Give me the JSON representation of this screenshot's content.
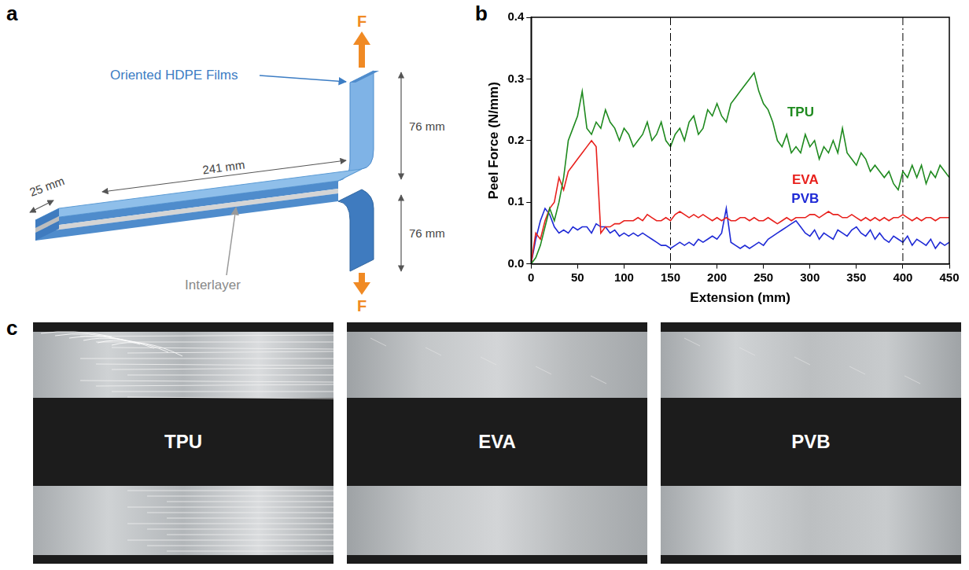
{
  "panel_a": {
    "letter": "a",
    "diagram": {
      "films_label": "Oriented HDPE Films",
      "interlayer_label": "Interlayer",
      "length": "241 mm",
      "width": "25 mm",
      "upper_arm": "76 mm",
      "lower_arm": "76 mm",
      "force_top": "F",
      "force_bottom": "F"
    }
  },
  "panel_b": {
    "letter": "b"
  },
  "chart_data": {
    "type": "line",
    "x_label": "Extension (mm)",
    "y_label": "Peel Force (N/mm)",
    "x": [
      0,
      5,
      10,
      15,
      20,
      25,
      30,
      35,
      40,
      45,
      50,
      55,
      60,
      65,
      70,
      75,
      80,
      85,
      90,
      95,
      100,
      105,
      110,
      115,
      120,
      125,
      130,
      135,
      140,
      145,
      150,
      155,
      160,
      165,
      170,
      175,
      180,
      185,
      190,
      195,
      200,
      205,
      210,
      215,
      220,
      225,
      230,
      235,
      240,
      245,
      250,
      255,
      260,
      265,
      270,
      275,
      280,
      285,
      290,
      295,
      300,
      305,
      310,
      315,
      320,
      325,
      330,
      335,
      340,
      345,
      350,
      355,
      360,
      365,
      370,
      375,
      380,
      385,
      390,
      395,
      400,
      405,
      410,
      415,
      420,
      425,
      430,
      435,
      440,
      445,
      450
    ],
    "series": [
      {
        "name": "TPU",
        "color": "#1f8a1f",
        "label_position": {
          "x": 290,
          "y": 0.245
        },
        "values": [
          0,
          0.01,
          0.03,
          0.06,
          0.09,
          0.07,
          0.1,
          0.14,
          0.2,
          0.22,
          0.24,
          0.28,
          0.22,
          0.21,
          0.23,
          0.22,
          0.25,
          0.23,
          0.22,
          0.2,
          0.22,
          0.21,
          0.19,
          0.2,
          0.21,
          0.23,
          0.2,
          0.21,
          0.23,
          0.2,
          0.19,
          0.21,
          0.22,
          0.2,
          0.23,
          0.24,
          0.21,
          0.22,
          0.25,
          0.24,
          0.26,
          0.24,
          0.23,
          0.26,
          0.27,
          0.28,
          0.29,
          0.3,
          0.31,
          0.28,
          0.26,
          0.25,
          0.23,
          0.2,
          0.19,
          0.21,
          0.18,
          0.19,
          0.18,
          0.21,
          0.19,
          0.2,
          0.17,
          0.19,
          0.18,
          0.2,
          0.18,
          0.22,
          0.18,
          0.17,
          0.16,
          0.18,
          0.17,
          0.15,
          0.16,
          0.15,
          0.14,
          0.15,
          0.13,
          0.12,
          0.15,
          0.14,
          0.16,
          0.14,
          0.16,
          0.13,
          0.15,
          0.14,
          0.16,
          0.15,
          0.14
        ]
      },
      {
        "name": "EVA",
        "color": "#e8211d",
        "label_position": {
          "x": 295,
          "y": 0.135
        },
        "values": [
          0,
          0.05,
          0.04,
          0.07,
          0.09,
          0.1,
          0.14,
          0.12,
          0.15,
          0.16,
          0.17,
          0.18,
          0.19,
          0.2,
          0.19,
          0.05,
          0.06,
          0.06,
          0.065,
          0.065,
          0.07,
          0.07,
          0.07,
          0.075,
          0.07,
          0.08,
          0.075,
          0.07,
          0.07,
          0.075,
          0.07,
          0.08,
          0.085,
          0.08,
          0.075,
          0.08,
          0.075,
          0.08,
          0.075,
          0.07,
          0.075,
          0.07,
          0.075,
          0.07,
          0.07,
          0.075,
          0.075,
          0.07,
          0.075,
          0.07,
          0.07,
          0.075,
          0.07,
          0.065,
          0.07,
          0.075,
          0.07,
          0.075,
          0.075,
          0.075,
          0.08,
          0.08,
          0.075,
          0.08,
          0.085,
          0.08,
          0.08,
          0.075,
          0.075,
          0.08,
          0.075,
          0.07,
          0.075,
          0.07,
          0.075,
          0.07,
          0.075,
          0.07,
          0.075,
          0.075,
          0.08,
          0.075,
          0.07,
          0.075,
          0.07,
          0.075,
          0.075,
          0.07,
          0.075,
          0.075,
          0.075
        ]
      },
      {
        "name": "PVB",
        "color": "#1f2ad6",
        "label_position": {
          "x": 295,
          "y": 0.105
        },
        "values": [
          0,
          0.04,
          0.07,
          0.09,
          0.08,
          0.06,
          0.05,
          0.055,
          0.05,
          0.06,
          0.055,
          0.06,
          0.06,
          0.05,
          0.065,
          0.06,
          0.06,
          0.05,
          0.055,
          0.045,
          0.05,
          0.045,
          0.05,
          0.045,
          0.05,
          0.045,
          0.04,
          0.035,
          0.03,
          0.03,
          0.025,
          0.03,
          0.035,
          0.03,
          0.035,
          0.03,
          0.04,
          0.035,
          0.04,
          0.045,
          0.04,
          0.05,
          0.09,
          0.035,
          0.03,
          0.025,
          0.03,
          0.025,
          0.03,
          0.035,
          0.03,
          0.04,
          0.045,
          0.05,
          0.055,
          0.06,
          0.065,
          0.07,
          0.06,
          0.05,
          0.045,
          0.055,
          0.04,
          0.05,
          0.045,
          0.04,
          0.055,
          0.05,
          0.045,
          0.055,
          0.06,
          0.05,
          0.045,
          0.055,
          0.04,
          0.05,
          0.04,
          0.035,
          0.045,
          0.04,
          0.035,
          0.045,
          0.03,
          0.04,
          0.035,
          0.03,
          0.04,
          0.025,
          0.035,
          0.03,
          0.035
        ]
      }
    ],
    "xlim": [
      0,
      450
    ],
    "xticks": [
      0,
      50,
      100,
      150,
      200,
      250,
      300,
      350,
      400,
      450
    ],
    "ylim": [
      0,
      0.4
    ],
    "yticks": [
      {
        "value": 0,
        "label": "0.0"
      },
      0.1,
      0.2,
      0.3,
      0.4
    ],
    "grid": false,
    "reference_lines": {
      "x": [
        150,
        400
      ],
      "line_style": "dashdot"
    }
  },
  "panel_c": {
    "letter": "c",
    "photos": [
      "TPU",
      "EVA",
      "PVB"
    ]
  }
}
